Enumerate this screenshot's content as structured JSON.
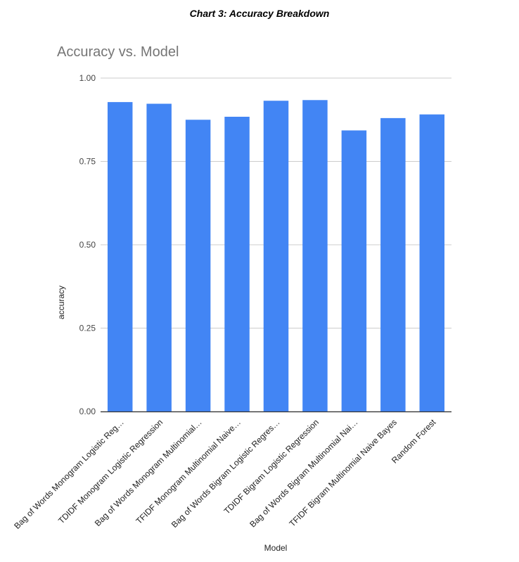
{
  "caption": "Chart 3: Accuracy Breakdown",
  "chart_data": {
    "type": "bar",
    "title": "Accuracy vs. Model",
    "xlabel": "Model",
    "ylabel": "accuracy",
    "ylim": [
      0,
      1
    ],
    "yticks": [
      "0.00",
      "0.25",
      "0.50",
      "0.75",
      "1.00"
    ],
    "grid": true,
    "legend": "none",
    "bar_color": "#4285f4",
    "categories": [
      "Bag of Words Monogram Logistic Reg…",
      "TDIDF Monogram Logistic Regression",
      "Bag of Words Monogram Multinomial…",
      "TFIDF Monogram  Multinomial Naive…",
      "Bag of Words Bigram Logistic Regres…",
      "TDIDF Bigram Logistic Regression",
      "Bag of Words Bigram Multinomial Nai…",
      "TFIDF Bigram Multinomial Naive Bayes",
      "Random Forest"
    ],
    "values": [
      0.928,
      0.923,
      0.875,
      0.884,
      0.932,
      0.934,
      0.843,
      0.88,
      0.891
    ]
  }
}
